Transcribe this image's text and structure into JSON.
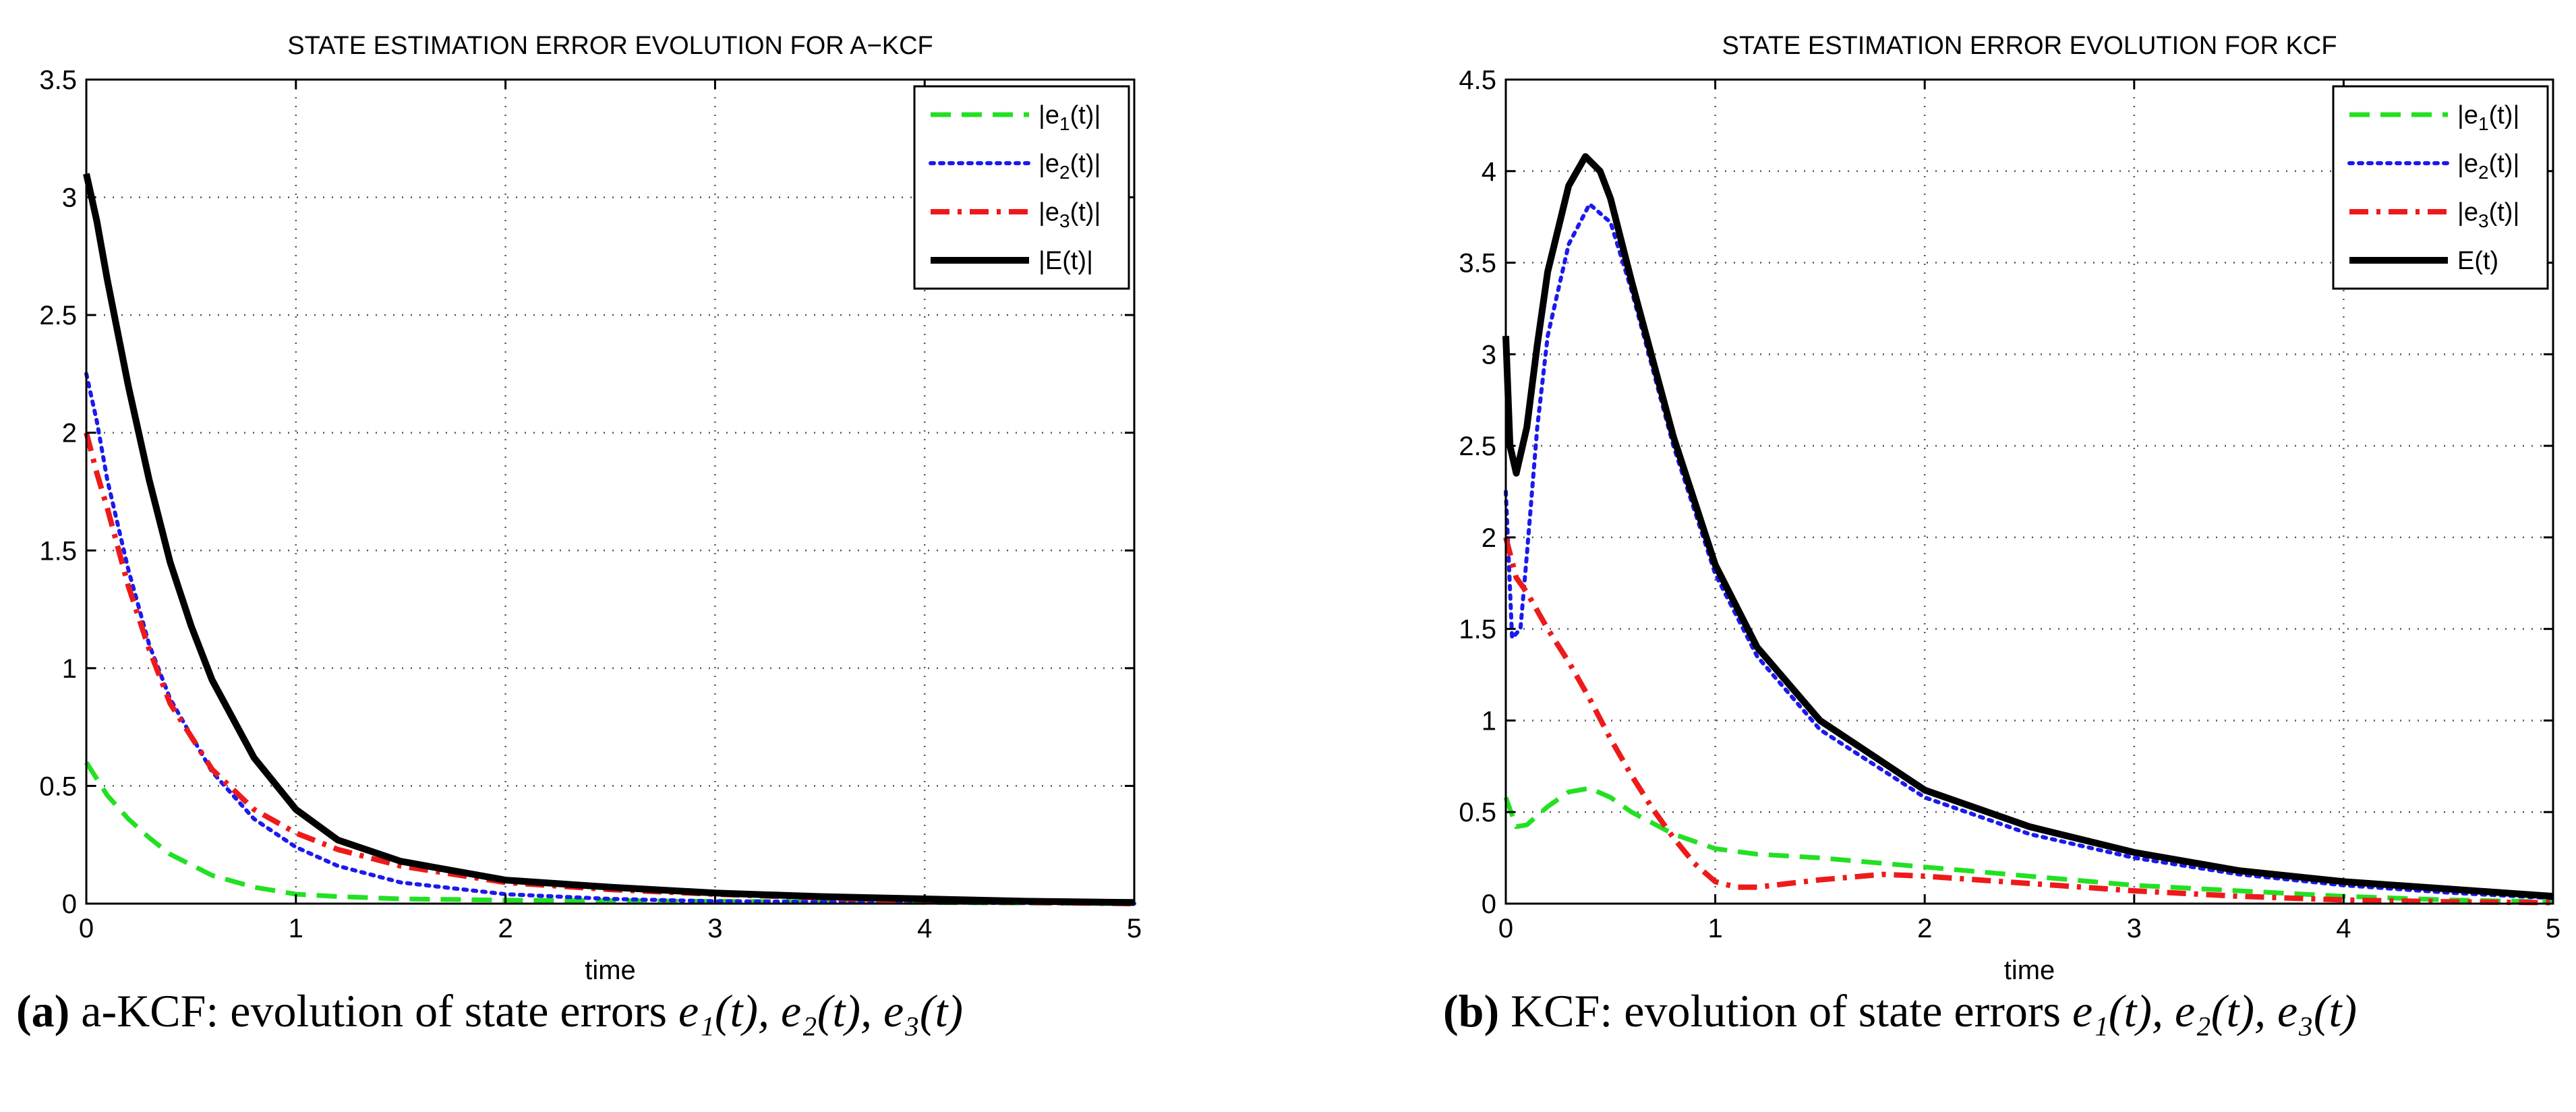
{
  "chart_data": [
    {
      "type": "line",
      "title": "STATE ESTIMATION ERROR EVOLUTION FOR A−KCF",
      "xlabel": "time",
      "ylabel": "",
      "xlim": [
        0,
        5
      ],
      "ylim": [
        0,
        3.5
      ],
      "xticks": [
        0,
        1,
        2,
        3,
        4,
        5
      ],
      "yticks": [
        0,
        0.5,
        1,
        1.5,
        2,
        2.5,
        3,
        3.5
      ],
      "grid": true,
      "legend_position": "top-right",
      "legend": [
        "|e1(t)|",
        "|e2(t)|",
        "|e3(t)|",
        "|E(t)|"
      ],
      "series": [
        {
          "name": "|e1(t)|",
          "color": "#22e022",
          "style": "dashed",
          "x": [
            0,
            0.1,
            0.2,
            0.3,
            0.4,
            0.6,
            0.8,
            1.0,
            1.2,
            1.5,
            2,
            3,
            4,
            5
          ],
          "y": [
            0.6,
            0.46,
            0.36,
            0.28,
            0.21,
            0.12,
            0.07,
            0.04,
            0.03,
            0.02,
            0.015,
            0.01,
            0.005,
            0.0
          ]
        },
        {
          "name": "|e2(t)|",
          "color": "#1a1aee",
          "style": "dotted",
          "x": [
            0,
            0.05,
            0.1,
            0.2,
            0.3,
            0.4,
            0.6,
            0.8,
            1.0,
            1.2,
            1.5,
            2,
            2.5,
            3,
            4,
            5
          ],
          "y": [
            2.25,
            2.05,
            1.8,
            1.42,
            1.1,
            0.87,
            0.56,
            0.36,
            0.24,
            0.16,
            0.09,
            0.04,
            0.02,
            0.01,
            0.005,
            0.0
          ]
        },
        {
          "name": "|e3(t)|",
          "color": "#ee1a1a",
          "style": "dashdot",
          "x": [
            0,
            0.05,
            0.1,
            0.2,
            0.3,
            0.4,
            0.6,
            0.8,
            1.0,
            1.2,
            1.5,
            2,
            2.5,
            3,
            4,
            5
          ],
          "y": [
            2.0,
            1.83,
            1.68,
            1.35,
            1.08,
            0.85,
            0.57,
            0.4,
            0.3,
            0.23,
            0.16,
            0.09,
            0.06,
            0.04,
            0.01,
            0.0
          ]
        },
        {
          "name": "|E(t)|",
          "color": "#000000",
          "style": "solid",
          "x": [
            0,
            0.05,
            0.1,
            0.2,
            0.3,
            0.4,
            0.5,
            0.6,
            0.8,
            1.0,
            1.2,
            1.5,
            2,
            2.5,
            3,
            3.5,
            4,
            4.5,
            5
          ],
          "y": [
            3.1,
            2.9,
            2.65,
            2.2,
            1.8,
            1.45,
            1.18,
            0.95,
            0.62,
            0.4,
            0.27,
            0.18,
            0.1,
            0.07,
            0.045,
            0.03,
            0.02,
            0.01,
            0.005
          ]
        }
      ]
    },
    {
      "type": "line",
      "title": "STATE ESTIMATION ERROR EVOLUTION FOR KCF",
      "xlabel": "time",
      "ylabel": "",
      "xlim": [
        0,
        5
      ],
      "ylim": [
        0,
        4.5
      ],
      "xticks": [
        0,
        1,
        2,
        3,
        4,
        5
      ],
      "yticks": [
        0,
        0.5,
        1,
        1.5,
        2,
        2.5,
        3,
        3.5,
        4,
        4.5
      ],
      "grid": true,
      "legend_position": "top-right",
      "legend": [
        "|e1(t)|",
        "|e2(t)|",
        "|e3(t)|",
        "E(t)"
      ],
      "series": [
        {
          "name": "|e1(t)|",
          "color": "#22e022",
          "style": "dashed",
          "x": [
            0,
            0.05,
            0.1,
            0.2,
            0.3,
            0.4,
            0.5,
            0.6,
            0.8,
            1.0,
            1.2,
            1.5,
            2,
            2.5,
            3,
            3.5,
            4,
            4.5,
            5
          ],
          "y": [
            0.58,
            0.42,
            0.43,
            0.53,
            0.61,
            0.63,
            0.58,
            0.5,
            0.38,
            0.3,
            0.27,
            0.25,
            0.2,
            0.15,
            0.1,
            0.07,
            0.04,
            0.02,
            0.01
          ]
        },
        {
          "name": "|e2(t)|",
          "color": "#1a1aee",
          "style": "dotted",
          "x": [
            0,
            0.03,
            0.07,
            0.1,
            0.15,
            0.2,
            0.3,
            0.4,
            0.5,
            0.6,
            0.8,
            1.0,
            1.2,
            1.5,
            2,
            2.5,
            3,
            3.5,
            4,
            4.5,
            5
          ],
          "y": [
            2.25,
            1.45,
            1.5,
            1.9,
            2.6,
            3.1,
            3.6,
            3.82,
            3.72,
            3.35,
            2.5,
            1.8,
            1.35,
            0.95,
            0.58,
            0.38,
            0.25,
            0.16,
            0.1,
            0.06,
            0.03
          ]
        },
        {
          "name": "|e3(t)|",
          "color": "#ee1a1a",
          "style": "dashdot",
          "x": [
            0,
            0.05,
            0.1,
            0.2,
            0.3,
            0.4,
            0.5,
            0.6,
            0.7,
            0.8,
            0.9,
            1.0,
            1.1,
            1.2,
            1.5,
            1.8,
            2,
            2.5,
            3,
            3.5,
            4,
            4.5,
            5
          ],
          "y": [
            2.0,
            1.78,
            1.7,
            1.5,
            1.32,
            1.12,
            0.9,
            0.7,
            0.52,
            0.36,
            0.22,
            0.12,
            0.09,
            0.09,
            0.13,
            0.16,
            0.15,
            0.11,
            0.07,
            0.04,
            0.02,
            0.01,
            0.005
          ]
        },
        {
          "name": "E(t)",
          "color": "#000000",
          "style": "solid",
          "x": [
            0,
            0.02,
            0.05,
            0.1,
            0.15,
            0.2,
            0.3,
            0.38,
            0.45,
            0.5,
            0.6,
            0.8,
            1.0,
            1.2,
            1.5,
            2,
            2.5,
            3,
            3.5,
            4,
            4.5,
            5
          ],
          "y": [
            3.1,
            2.5,
            2.35,
            2.6,
            3.05,
            3.45,
            3.92,
            4.08,
            4.0,
            3.85,
            3.4,
            2.55,
            1.85,
            1.4,
            1.0,
            0.62,
            0.42,
            0.28,
            0.18,
            0.12,
            0.08,
            0.04
          ]
        }
      ]
    }
  ],
  "captions": [
    {
      "label": "(a)",
      "text": "a-KCF: evolution of state errors",
      "math": "e₁(t), e₂(t), e₃(t)"
    },
    {
      "label": "(b)",
      "text": "KCF: evolution of state errors",
      "math": "e₁(t), e₂(t), e₃(t)"
    }
  ]
}
